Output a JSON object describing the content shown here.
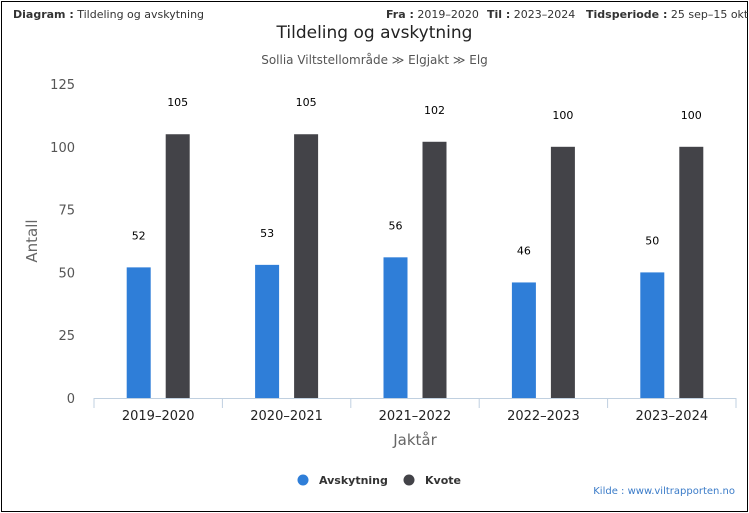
{
  "header": {
    "diagram_label": "Diagram :",
    "diagram_value": "Tildeling og avskytning",
    "from_label": "Fra :",
    "from_value": "2019–2020",
    "to_label": "Til :",
    "to_value": "2023–2024",
    "period_label": "Tidsperiode :",
    "period_value": "25 sep–15 okt"
  },
  "source": "Kilde : www.viltrapporten.no",
  "chart_data": {
    "type": "bar",
    "title": "Tildeling og avskytning",
    "subtitle": "Sollia Viltstellområde ≫ Elgjakt ≫ Elg",
    "xlabel": "Jaktår",
    "ylabel": "Antall",
    "ylim": [
      0,
      125
    ],
    "yticks": [
      0,
      25,
      50,
      75,
      100,
      125
    ],
    "categories": [
      "2019–2020",
      "2020–2021",
      "2021–2022",
      "2022–2023",
      "2023–2024"
    ],
    "series": [
      {
        "name": "Avskytning",
        "color": "#2f7ed8",
        "values": [
          52,
          53,
          56,
          46,
          50
        ]
      },
      {
        "name": "Kvote",
        "color": "#434348",
        "values": [
          105,
          105,
          102,
          100,
          100
        ]
      }
    ],
    "legend_position": "bottom-center",
    "grid": false
  }
}
